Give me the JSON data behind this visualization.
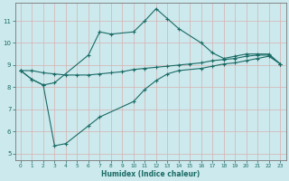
{
  "xlabel": "Humidex (Indice chaleur)",
  "bg_color": "#cce9ed",
  "line_color": "#1a6b65",
  "grid_color": "#b0d8dc",
  "xlim": [
    -0.5,
    23.5
  ],
  "ylim": [
    4.7,
    11.8
  ],
  "yticks": [
    5,
    6,
    7,
    8,
    9,
    10,
    11
  ],
  "xticks": [
    0,
    1,
    2,
    3,
    4,
    5,
    6,
    7,
    8,
    9,
    10,
    11,
    12,
    13,
    14,
    15,
    16,
    17,
    18,
    19,
    20,
    21,
    22,
    23
  ],
  "series": [
    {
      "x": [
        0,
        1,
        2,
        3,
        6,
        7,
        8,
        10,
        11,
        12,
        13,
        14,
        16,
        17,
        18,
        19,
        20,
        21,
        22,
        23
      ],
      "y": [
        8.75,
        8.35,
        8.1,
        8.2,
        9.45,
        10.5,
        10.4,
        10.5,
        11.0,
        11.55,
        11.1,
        10.65,
        10.0,
        9.55,
        9.3,
        9.4,
        9.5,
        9.5,
        9.5,
        9.05
      ]
    },
    {
      "x": [
        0,
        1,
        2,
        3,
        4,
        5,
        6,
        7,
        8,
        9,
        10,
        11,
        12,
        13,
        14,
        15,
        16,
        17,
        18,
        19,
        20,
        21,
        22,
        23
      ],
      "y": [
        8.75,
        8.75,
        8.65,
        8.6,
        8.55,
        8.55,
        8.55,
        8.6,
        8.65,
        8.7,
        8.8,
        8.85,
        8.9,
        8.95,
        9.0,
        9.05,
        9.1,
        9.2,
        9.25,
        9.3,
        9.4,
        9.45,
        9.45,
        9.05
      ]
    },
    {
      "x": [
        0,
        1,
        2,
        3,
        4,
        6,
        7,
        10,
        11,
        12,
        13,
        14,
        16,
        17,
        18,
        19,
        20,
        21,
        22,
        23
      ],
      "y": [
        8.75,
        8.35,
        8.1,
        5.35,
        5.45,
        6.25,
        6.65,
        7.35,
        7.9,
        8.3,
        8.6,
        8.75,
        8.85,
        8.95,
        9.05,
        9.1,
        9.2,
        9.3,
        9.4,
        9.05
      ]
    }
  ]
}
